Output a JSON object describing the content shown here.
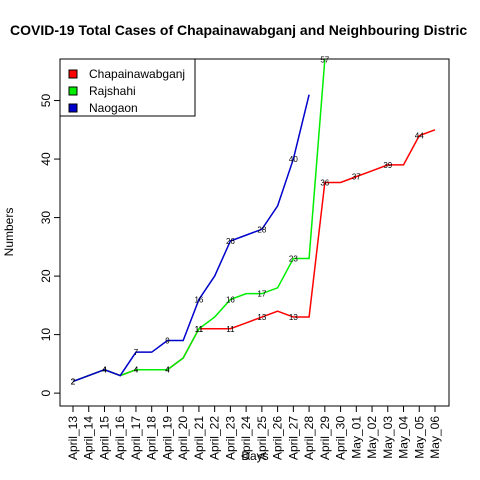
{
  "chart_data": {
    "type": "line",
    "title": "COVID-19 Total Cases of Chapainawabganj and Neighbouring Distric",
    "x_label": "Days",
    "y_label": "Numbers",
    "categories": [
      "April_13",
      "April_14",
      "April_15",
      "April_16",
      "April_17",
      "April_18",
      "April_19",
      "April_20",
      "April_21",
      "April_22",
      "April_23",
      "April_24",
      "April_25",
      "April_26",
      "April_27",
      "April_28",
      "April_29",
      "April_30",
      "May_01",
      "May_02",
      "May_03",
      "May_04",
      "May_05",
      "May_06"
    ],
    "series": [
      {
        "name": "Chapainawabganj",
        "color": "#ff0000",
        "values": [
          2,
          3,
          4,
          3,
          4,
          4,
          4,
          6,
          11,
          11,
          11,
          12,
          13,
          14,
          13,
          13,
          36,
          36,
          37,
          38,
          39,
          39,
          44,
          45
        ]
      },
      {
        "name": "Rajshahi",
        "color": "#00ee00",
        "values": [
          2,
          3,
          4,
          3,
          4,
          4,
          4,
          6,
          11,
          13,
          16,
          17,
          17,
          18,
          23,
          23,
          57,
          null,
          null,
          null,
          null,
          null,
          null,
          null
        ]
      },
      {
        "name": "Naogaon",
        "color": "#0000cc",
        "values": [
          2,
          3,
          4,
          3,
          7,
          7,
          9,
          9,
          16,
          20,
          26,
          27,
          28,
          32,
          40,
          51,
          null,
          null,
          null,
          null,
          null,
          null,
          null,
          null
        ]
      }
    ],
    "ylim": [
      -2.2,
      57.1
    ],
    "yticks": [
      0,
      10,
      20,
      30,
      40,
      50
    ],
    "legend": "top-left"
  }
}
